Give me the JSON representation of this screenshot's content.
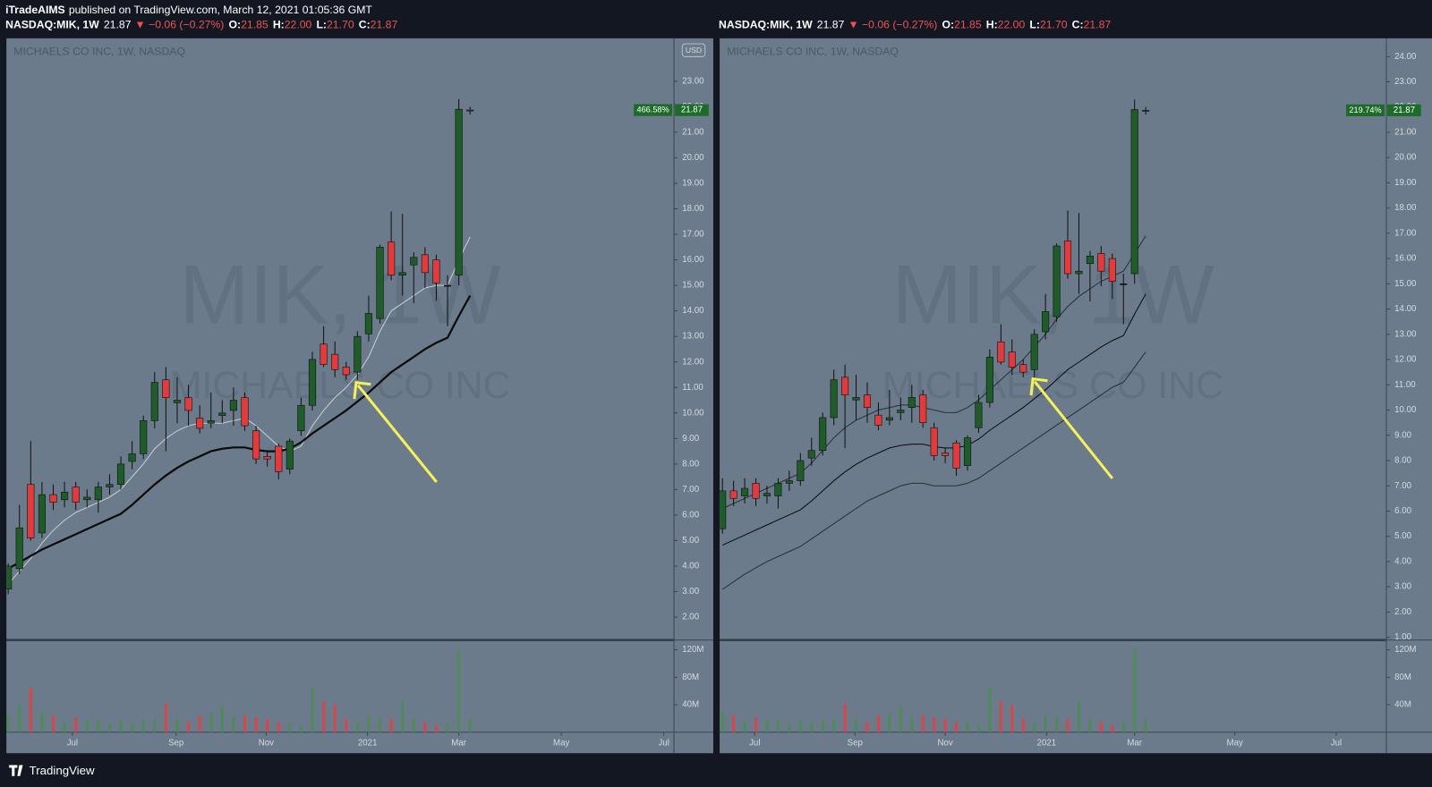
{
  "header": {
    "publisher": "iTradeAIMS",
    "published_text": "published on TradingView.com, March 12, 2021 01:05:36 GMT"
  },
  "chart_data": [
    {
      "type": "candlestick",
      "symbol": "NASDAQ:MIK, 1W",
      "last": "21.87",
      "change": "▼ −0.06 (−0.27%)",
      "quote": [
        {
          "label": "O:",
          "value": "21.85"
        },
        {
          "label": "H:",
          "value": "22.00"
        },
        {
          "label": "L:",
          "value": "21.70"
        },
        {
          "label": "C:",
          "value": "21.87"
        }
      ],
      "title": "MICHAELS CO INC, 1W, NASDAQ",
      "watermark": "MIK, 1W",
      "watermark_subtitle": "MICHAELS CO INC",
      "currency": "USD",
      "x": [
        0,
        1,
        2,
        3,
        4,
        5,
        6,
        7,
        8,
        9,
        10,
        11,
        12,
        13,
        14,
        15,
        16,
        17,
        18,
        19,
        20,
        21,
        22,
        23,
        24,
        25,
        26,
        27,
        28,
        29,
        30,
        31,
        32,
        33,
        34,
        35,
        36,
        37,
        38,
        39,
        40,
        41
      ],
      "open": [
        3.1,
        3.9,
        7.2,
        5.3,
        6.8,
        6.6,
        7.1,
        6.6,
        6.6,
        7.1,
        7.2,
        8.1,
        8.4,
        9.7,
        11.3,
        10.4,
        10.6,
        9.8,
        9.6,
        9.9,
        10.1,
        10.6,
        9.3,
        8.3,
        8.7,
        7.8,
        9.3,
        10.3,
        12.7,
        12.3,
        11.8,
        11.6,
        13.1,
        13.7,
        16.7,
        15.4,
        15.8,
        16.2,
        16.0,
        15.0,
        15.4,
        21.85
      ],
      "high": [
        4.1,
        6.4,
        8.9,
        7.3,
        7.2,
        7.3,
        7.3,
        7.0,
        7.3,
        7.6,
        8.3,
        8.9,
        9.9,
        11.6,
        11.8,
        11.4,
        11.1,
        10.3,
        10.8,
        10.5,
        11.0,
        10.8,
        9.5,
        8.5,
        8.8,
        9.0,
        10.6,
        12.4,
        13.4,
        12.8,
        12.0,
        13.2,
        14.6,
        16.6,
        17.9,
        17.8,
        16.3,
        16.5,
        16.2,
        15.4,
        22.3,
        22.0
      ],
      "low": [
        2.9,
        3.7,
        5.0,
        5.1,
        6.2,
        6.3,
        6.2,
        6.3,
        6.1,
        6.8,
        7.0,
        7.8,
        8.2,
        9.4,
        8.5,
        9.6,
        9.5,
        9.2,
        9.4,
        9.6,
        9.5,
        9.3,
        8.0,
        7.9,
        7.4,
        7.6,
        9.1,
        10.1,
        11.8,
        11.4,
        11.3,
        11.3,
        12.8,
        13.5,
        15.2,
        14.6,
        14.3,
        14.9,
        14.4,
        13.4,
        15.0,
        21.7
      ],
      "close": [
        4.0,
        5.5,
        5.1,
        6.8,
        6.5,
        6.9,
        6.5,
        6.7,
        7.1,
        7.2,
        8.0,
        8.4,
        9.7,
        11.2,
        10.6,
        10.5,
        10.1,
        9.4,
        9.7,
        10.0,
        10.5,
        9.5,
        8.2,
        8.2,
        7.7,
        8.9,
        10.3,
        12.1,
        11.9,
        11.7,
        11.5,
        13.0,
        13.9,
        16.5,
        15.4,
        15.5,
        16.1,
        15.5,
        15.1,
        15.0,
        21.9,
        21.87
      ],
      "volume": [
        25000000,
        40000000,
        65000000,
        30000000,
        25000000,
        15000000,
        22000000,
        18000000,
        20000000,
        12000000,
        18000000,
        15000000,
        18000000,
        20000000,
        42000000,
        20000000,
        15000000,
        25000000,
        28000000,
        38000000,
        22000000,
        25000000,
        22000000,
        20000000,
        15000000,
        15000000,
        10000000,
        65000000,
        45000000,
        40000000,
        20000000,
        15000000,
        25000000,
        22000000,
        20000000,
        45000000,
        20000000,
        15000000,
        10000000,
        15000000,
        120000000,
        20000000
      ],
      "colors": {
        "up": "#1f5c2a",
        "down": "#e23b3b",
        "flat": "#111111",
        "up_volume": "#4f8a5a",
        "down_volume": "#d4474a",
        "tag": "#1c6b28"
      },
      "series": [
        {
          "color": "#c9ced4",
          "line_style": "thin",
          "values": [
            3.3,
            3.8,
            4.3,
            4.9,
            5.4,
            5.8,
            6.1,
            6.3,
            6.5,
            6.7,
            7.0,
            7.5,
            8.0,
            8.6,
            9.0,
            9.3,
            9.5,
            9.6,
            9.6,
            9.6,
            9.7,
            9.8,
            9.5,
            9.1,
            8.7,
            8.5,
            8.7,
            9.5,
            10.1,
            10.6,
            11.0,
            11.5,
            12.2,
            13.2,
            14.0,
            14.3,
            14.6,
            14.9,
            15.0,
            15.0,
            16.0,
            16.9
          ]
        },
        {
          "color": "#0b0b0b",
          "line_style": "thick",
          "values": [
            3.9,
            4.15,
            4.4,
            4.65,
            4.85,
            5.05,
            5.25,
            5.45,
            5.65,
            5.85,
            6.05,
            6.4,
            6.8,
            7.2,
            7.55,
            7.85,
            8.1,
            8.3,
            8.5,
            8.6,
            8.65,
            8.65,
            8.55,
            8.5,
            8.5,
            8.6,
            8.85,
            9.2,
            9.5,
            9.8,
            10.1,
            10.45,
            10.8,
            11.2,
            11.6,
            11.9,
            12.2,
            12.5,
            12.75,
            12.95,
            13.8,
            14.6
          ]
        }
      ],
      "last_price": 21.87,
      "percent_label": "466.58%",
      "xlim": [
        -0.16,
        59.1
      ],
      "xticks": [
        {
          "value": 5.7,
          "label": "Jul"
        },
        {
          "value": 14.9,
          "label": "Sep"
        },
        {
          "value": 22.9,
          "label": "Nov"
        },
        {
          "value": 31.9,
          "label": "2021"
        },
        {
          "value": 40,
          "label": "Mar"
        },
        {
          "value": 49.1,
          "label": "May"
        },
        {
          "value": 58.2,
          "label": "Jul"
        }
      ],
      "ylim": [
        1.14,
        24.68
      ],
      "yticks": [
        {
          "value": 2,
          "label": "2.00"
        },
        {
          "value": 3,
          "label": "3.00"
        },
        {
          "value": 4,
          "label": "4.00"
        },
        {
          "value": 5,
          "label": "5.00"
        },
        {
          "value": 6,
          "label": "6.00"
        },
        {
          "value": 7,
          "label": "7.00"
        },
        {
          "value": 8,
          "label": "8.00"
        },
        {
          "value": 9,
          "label": "9.00"
        },
        {
          "value": 10,
          "label": "10.00"
        },
        {
          "value": 11,
          "label": "11.00"
        },
        {
          "value": 12,
          "label": "12.00"
        },
        {
          "value": 13,
          "label": "13.00"
        },
        {
          "value": 14,
          "label": "14.00"
        },
        {
          "value": 15,
          "label": "15.00"
        },
        {
          "value": 16,
          "label": "16.00"
        },
        {
          "value": 17,
          "label": "17.00"
        },
        {
          "value": 18,
          "label": "18.00"
        },
        {
          "value": 19,
          "label": "19.00"
        },
        {
          "value": 20,
          "label": "20.00"
        },
        {
          "value": 21,
          "label": "21.00"
        },
        {
          "value": 22,
          "label": "22.00"
        },
        {
          "value": 23,
          "label": "23.00"
        }
      ],
      "volume_ylim": [
        0,
        133000000
      ],
      "volume_yticks": [
        {
          "value": 40000000,
          "label": "40M"
        },
        {
          "value": 80000000,
          "label": "80M"
        },
        {
          "value": 120000000,
          "label": "120M"
        }
      ]
    },
    {
      "type": "candlestick",
      "symbol": "NASDAQ:MIK, 1W",
      "last": "21.87",
      "change": "▼ −0.06 (−0.27%)",
      "quote": [
        {
          "label": "O:",
          "value": "21.85"
        },
        {
          "label": "H:",
          "value": "22.00"
        },
        {
          "label": "L:",
          "value": "21.70"
        },
        {
          "label": "C:",
          "value": "21.87"
        }
      ],
      "title": "MICHAELS CO INC, 1W, NASDAQ",
      "watermark": "MIK, 1W",
      "watermark_subtitle": "MICHAELS CO INC",
      "x": [
        3,
        4,
        5,
        6,
        7,
        8,
        9,
        10,
        11,
        12,
        13,
        14,
        15,
        16,
        17,
        18,
        19,
        20,
        21,
        22,
        23,
        24,
        25,
        26,
        27,
        28,
        29,
        30,
        31,
        32,
        33,
        34,
        35,
        36,
        37,
        38,
        39,
        40,
        41
      ],
      "open": [
        5.3,
        6.8,
        6.6,
        7.1,
        6.6,
        6.6,
        7.1,
        7.2,
        8.1,
        8.4,
        9.7,
        11.3,
        10.4,
        10.6,
        9.8,
        9.6,
        9.9,
        10.1,
        10.6,
        9.3,
        8.3,
        8.7,
        7.8,
        9.3,
        10.3,
        12.7,
        12.3,
        11.8,
        11.6,
        13.1,
        13.7,
        16.7,
        15.4,
        15.8,
        16.2,
        16.0,
        15.0,
        15.4,
        21.85
      ],
      "high": [
        7.3,
        7.2,
        7.3,
        7.3,
        7.0,
        7.3,
        7.6,
        8.3,
        8.9,
        9.9,
        11.6,
        11.8,
        11.4,
        11.1,
        10.3,
        10.8,
        10.5,
        11.0,
        10.8,
        9.5,
        8.5,
        8.8,
        9.0,
        10.6,
        12.4,
        13.4,
        12.8,
        12.0,
        13.2,
        14.6,
        16.6,
        17.9,
        17.8,
        16.3,
        16.5,
        16.2,
        15.4,
        22.3,
        22.0
      ],
      "low": [
        5.1,
        6.2,
        6.3,
        6.2,
        6.3,
        6.1,
        6.8,
        7.0,
        7.8,
        8.2,
        9.4,
        8.5,
        9.6,
        9.5,
        9.2,
        9.4,
        9.6,
        9.5,
        9.3,
        8.0,
        7.9,
        7.4,
        7.6,
        9.1,
        10.1,
        11.8,
        11.4,
        11.3,
        11.3,
        12.8,
        13.5,
        15.2,
        14.6,
        14.3,
        14.9,
        14.4,
        13.4,
        15.0,
        21.7
      ],
      "close": [
        6.8,
        6.5,
        6.9,
        6.5,
        6.7,
        7.1,
        7.2,
        8.0,
        8.4,
        9.7,
        11.2,
        10.6,
        10.5,
        10.1,
        9.4,
        9.7,
        10.0,
        10.5,
        9.5,
        8.2,
        8.2,
        7.7,
        8.9,
        10.3,
        12.1,
        11.9,
        11.7,
        11.5,
        13.0,
        13.9,
        16.5,
        15.4,
        15.5,
        16.1,
        15.5,
        15.1,
        15.0,
        21.9,
        21.87
      ],
      "volume": [
        30000000,
        25000000,
        15000000,
        22000000,
        18000000,
        20000000,
        12000000,
        18000000,
        15000000,
        18000000,
        20000000,
        42000000,
        20000000,
        15000000,
        25000000,
        28000000,
        38000000,
        22000000,
        25000000,
        22000000,
        20000000,
        15000000,
        15000000,
        10000000,
        65000000,
        45000000,
        40000000,
        20000000,
        15000000,
        25000000,
        22000000,
        20000000,
        45000000,
        20000000,
        15000000,
        10000000,
        15000000,
        120000000,
        20000000
      ],
      "colors": {
        "up": "#1f5c2a",
        "down": "#e23b3b",
        "flat": "#111111",
        "up_volume": "#4f8a5a",
        "down_volume": "#d4474a",
        "tag": "#1c6b28"
      },
      "series": [
        {
          "color": "#2a2f36",
          "line_style": "thin",
          "values": [
            6.1,
            6.3,
            6.5,
            6.7,
            6.9,
            7.1,
            7.3,
            7.5,
            7.9,
            8.4,
            8.9,
            9.3,
            9.6,
            9.8,
            10.0,
            10.1,
            10.2,
            10.2,
            10.1,
            10.0,
            9.9,
            9.9,
            10.1,
            10.4,
            10.8,
            11.2,
            11.6,
            12.0,
            12.5,
            13.0,
            13.6,
            14.1,
            14.5,
            14.8,
            15.1,
            15.3,
            15.5,
            16.2,
            16.9
          ]
        },
        {
          "color": "#0b0b0b",
          "line_style": "thin",
          "values": [
            4.65,
            4.85,
            5.05,
            5.25,
            5.45,
            5.65,
            5.85,
            6.05,
            6.4,
            6.8,
            7.2,
            7.55,
            7.85,
            8.1,
            8.3,
            8.5,
            8.6,
            8.65,
            8.65,
            8.55,
            8.5,
            8.5,
            8.6,
            8.85,
            9.2,
            9.5,
            9.8,
            10.1,
            10.45,
            10.8,
            11.2,
            11.6,
            11.9,
            12.2,
            12.5,
            12.75,
            12.95,
            13.8,
            14.6
          ]
        },
        {
          "color": "#2a2f36",
          "line_style": "thin",
          "values": [
            2.9,
            3.2,
            3.5,
            3.75,
            4.0,
            4.2,
            4.4,
            4.6,
            4.9,
            5.2,
            5.5,
            5.8,
            6.1,
            6.4,
            6.6,
            6.8,
            7.0,
            7.1,
            7.1,
            7.0,
            7.0,
            7.0,
            7.1,
            7.3,
            7.6,
            7.9,
            8.2,
            8.5,
            8.8,
            9.1,
            9.4,
            9.7,
            10.0,
            10.3,
            10.6,
            10.9,
            11.1,
            11.7,
            12.3
          ]
        }
      ],
      "last_price": 21.87,
      "percent_label": "219.74%",
      "xlim": [
        2.75,
        62.6
      ],
      "xticks": [
        {
          "value": 5.9,
          "label": "Jul"
        },
        {
          "value": 14.9,
          "label": "Sep"
        },
        {
          "value": 23.0,
          "label": "Nov"
        },
        {
          "value": 32.1,
          "label": "2021"
        },
        {
          "value": 40,
          "label": "Mar"
        },
        {
          "value": 49.0,
          "label": "May"
        },
        {
          "value": 58.1,
          "label": "Jul"
        }
      ],
      "ylim": [
        0.93,
        24.72
      ],
      "yticks": [
        {
          "value": 1,
          "label": "1.00"
        },
        {
          "value": 2,
          "label": "2.00"
        },
        {
          "value": 3,
          "label": "3.00"
        },
        {
          "value": 4,
          "label": "4.00"
        },
        {
          "value": 5,
          "label": "5.00"
        },
        {
          "value": 6,
          "label": "6.00"
        },
        {
          "value": 7,
          "label": "7.00"
        },
        {
          "value": 8,
          "label": "8.00"
        },
        {
          "value": 9,
          "label": "9.00"
        },
        {
          "value": 10,
          "label": "10.00"
        },
        {
          "value": 11,
          "label": "11.00"
        },
        {
          "value": 12,
          "label": "12.00"
        },
        {
          "value": 13,
          "label": "13.00"
        },
        {
          "value": 14,
          "label": "14.00"
        },
        {
          "value": 15,
          "label": "15.00"
        },
        {
          "value": 16,
          "label": "16.00"
        },
        {
          "value": 17,
          "label": "17.00"
        },
        {
          "value": 18,
          "label": "18.00"
        },
        {
          "value": 19,
          "label": "19.00"
        },
        {
          "value": 20,
          "label": "20.00"
        },
        {
          "value": 21,
          "label": "21.00"
        },
        {
          "value": 22,
          "label": "22.00"
        },
        {
          "value": 23,
          "label": "23.00"
        },
        {
          "value": 24,
          "label": "24.00"
        }
      ],
      "volume_ylim": [
        0,
        133000000
      ],
      "volume_yticks": [
        {
          "value": 40000000,
          "label": "40M"
        },
        {
          "value": 80000000,
          "label": "80M"
        },
        {
          "value": 120000000,
          "label": "120M"
        }
      ]
    }
  ],
  "footer": {
    "brand": "TradingView"
  }
}
